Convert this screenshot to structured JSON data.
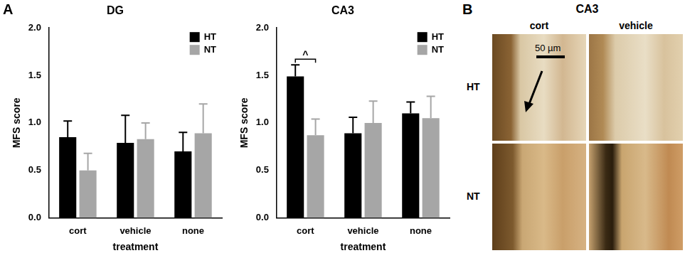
{
  "chart_data": [
    {
      "type": "bar",
      "title": "DG",
      "x_label": "treatment",
      "y_label": "MFS score",
      "categories": [
        "cort",
        "vehicle",
        "none"
      ],
      "series": [
        {
          "name": "HT",
          "color": "#000000",
          "values": [
            0.85,
            0.79,
            0.7
          ],
          "errors": [
            0.17,
            0.29,
            0.2
          ]
        },
        {
          "name": "NT",
          "color": "#a6a6a6",
          "values": [
            0.5,
            0.83,
            0.89
          ],
          "errors": [
            0.18,
            0.17,
            0.31
          ]
        }
      ],
      "ylim": [
        0,
        2
      ],
      "yticks": [
        {
          "value": 0,
          "label": "0.0"
        },
        {
          "value": 0.5,
          "label": "0.5"
        },
        {
          "value": 1,
          "label": "1.0"
        },
        {
          "value": 1.5,
          "label": "1.5"
        },
        {
          "value": 2,
          "label": "2.0"
        }
      ],
      "grid": false,
      "legend": "upper right"
    },
    {
      "type": "bar",
      "title": "CA3",
      "x_label": "treatment",
      "y_label": "MFS score",
      "categories": [
        "cort",
        "vehicle",
        "none"
      ],
      "series": [
        {
          "name": "HT",
          "color": "#000000",
          "values": [
            1.49,
            0.89,
            1.1
          ],
          "errors": [
            0.12,
            0.17,
            0.12
          ]
        },
        {
          "name": "NT",
          "color": "#a6a6a6",
          "values": [
            0.87,
            1.0,
            1.05
          ],
          "errors": [
            0.17,
            0.23,
            0.23
          ]
        }
      ],
      "ylim": [
        0,
        2
      ],
      "yticks": [
        {
          "value": 0,
          "label": "0.0"
        },
        {
          "value": 0.5,
          "label": "0.5"
        },
        {
          "value": 1,
          "label": "1.0"
        },
        {
          "value": 1.5,
          "label": "1.5"
        },
        {
          "value": 2,
          "label": "2.0"
        }
      ],
      "grid": false,
      "legend": "upper right",
      "annotations": [
        {
          "category": "cort",
          "text": "^"
        }
      ]
    }
  ],
  "panel_labels": [
    "A",
    "B"
  ],
  "images": {
    "title": "CA3",
    "columns": [
      "cort",
      "vehicle"
    ],
    "rows": [
      "HT",
      "NT"
    ],
    "scale_bar": "50 µm"
  }
}
